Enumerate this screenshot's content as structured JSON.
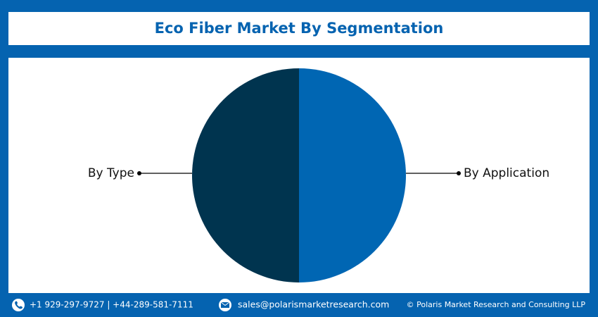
{
  "chart_data": {
    "type": "pie",
    "title": "Eco Fiber Market By Segmentation",
    "categories": [
      "By Application",
      "By Type"
    ],
    "values": [
      50,
      50
    ],
    "colors": [
      "#0066b3",
      "#00344f"
    ]
  },
  "footer": {
    "phone": "+1 929-297-9727 | +44-289-581-7111",
    "email": "sales@polarismarketresearch.com",
    "copyright": "© Polaris Market Research and Consulting LLP"
  }
}
